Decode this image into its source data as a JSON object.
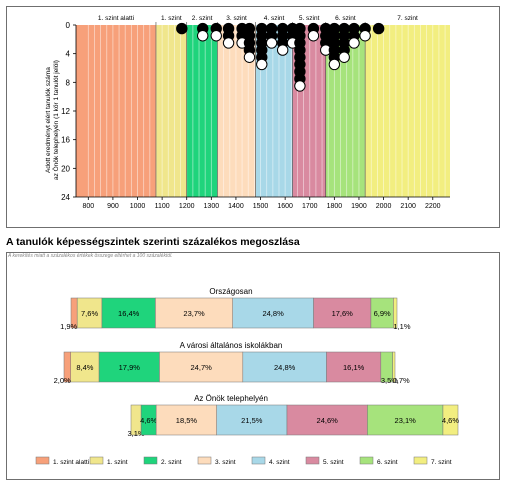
{
  "section": {
    "title": "A tanulók képességszintek szerinti százalékos megoszlása",
    "note": "A kerekítés miatt a százalékos értékek összege eltérhet a 100 százaléktól."
  },
  "level_colors": [
    "#f7a07a",
    "#f0e68c",
    "#1fd47c",
    "#fddcbc",
    "#a8d8e8",
    "#d98aa0",
    "#a6e37c",
    "#f2ee80"
  ],
  "chart_data": [
    {
      "type": "scatter",
      "title": "",
      "ylabel_lines": [
        "Adott eredményt elért tanulók száma",
        "az Önök telephelyén (1 kör 1 tanulót jelöl)"
      ],
      "xlim": [
        750,
        2270
      ],
      "ylim": [
        0,
        24
      ],
      "y_inverted": true,
      "grid": true,
      "x_ticks": [
        800,
        900,
        1000,
        1100,
        1200,
        1300,
        1400,
        1500,
        1600,
        1700,
        1800,
        1900,
        2000,
        2100,
        2200
      ],
      "y_ticks": [
        0,
        4,
        8,
        12,
        16,
        20,
        24
      ],
      "bands": [
        {
          "label": "1. szint alatti",
          "from": 750,
          "to": 1075
        },
        {
          "label": "1. szint",
          "from": 1075,
          "to": 1200
        },
        {
          "label": "2. szint",
          "from": 1200,
          "to": 1325
        },
        {
          "label": "3. szint",
          "from": 1325,
          "to": 1480
        },
        {
          "label": "4. szint",
          "from": 1480,
          "to": 1630
        },
        {
          "label": "5. szint",
          "from": 1630,
          "to": 1765
        },
        {
          "label": "6. szint",
          "from": 1765,
          "to": 1925
        },
        {
          "label": "7. szint",
          "from": 1925,
          "to": 2270
        }
      ],
      "columns": [
        {
          "x": 1180,
          "count": 1
        },
        {
          "x": 1265,
          "count": 2
        },
        {
          "x": 1320,
          "count": 2
        },
        {
          "x": 1370,
          "count": 3
        },
        {
          "x": 1425,
          "count": 3
        },
        {
          "x": 1455,
          "count": 5
        },
        {
          "x": 1505,
          "count": 6
        },
        {
          "x": 1545,
          "count": 3
        },
        {
          "x": 1590,
          "count": 4
        },
        {
          "x": 1630,
          "count": 3
        },
        {
          "x": 1660,
          "count": 9
        },
        {
          "x": 1715,
          "count": 2
        },
        {
          "x": 1765,
          "count": 4
        },
        {
          "x": 1800,
          "count": 6
        },
        {
          "x": 1840,
          "count": 5
        },
        {
          "x": 1880,
          "count": 3
        },
        {
          "x": 1925,
          "count": 2
        },
        {
          "x": 1980,
          "count": 1
        }
      ]
    },
    {
      "type": "bar",
      "stacked": true,
      "orientation": "horizontal",
      "series_names": [
        "1. szint alatti",
        "1. szint",
        "2. szint",
        "3. szint",
        "4. szint",
        "5. szint",
        "6. szint",
        "7. szint"
      ],
      "groups": [
        {
          "name": "Országosan",
          "values": [
            1.9,
            7.6,
            16.4,
            23.7,
            24.8,
            17.6,
            6.9,
            1.1
          ]
        },
        {
          "name": "A városi általános iskolákban",
          "values": [
            2.0,
            8.4,
            17.9,
            24.7,
            24.8,
            16.1,
            3.5,
            0.7
          ]
        },
        {
          "name": "Az Önök telephelyén",
          "values": [
            0,
            3.1,
            4.6,
            18.5,
            21.5,
            24.6,
            23.1,
            4.6
          ]
        }
      ],
      "labels": [
        [
          "1,9%",
          "7,6%",
          "16,4%",
          "23,7%",
          "24,8%",
          "17,6%",
          "6,9%",
          "1,1%"
        ],
        [
          "2,0%",
          "8,4%",
          "17,9%",
          "24,7%",
          "24,8%",
          "16,1%",
          "3,5%",
          "0,7%"
        ],
        [
          "",
          "3,1%",
          "4,6%",
          "18,5%",
          "21,5%",
          "24,6%",
          "23,1%",
          "4,6%"
        ]
      ],
      "legend": [
        "1. szint alatti",
        "1. szint",
        "2. szint",
        "3. szint",
        "4. szint",
        "5. szint",
        "6. szint",
        "7. szint"
      ],
      "legend_position": "bottom"
    }
  ]
}
